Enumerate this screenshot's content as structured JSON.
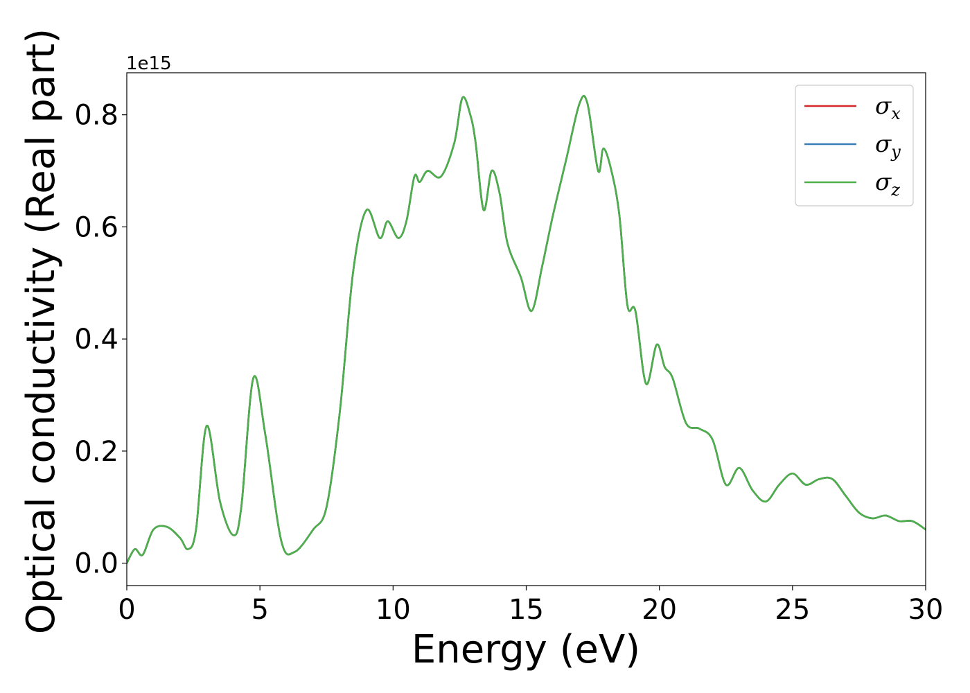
{
  "chart_data": {
    "type": "line",
    "xlabel": "Energy (eV)",
    "ylabel": "Optical conductivity (Real part)",
    "y_offset_label": "1e15",
    "xlim": [
      0,
      30
    ],
    "ylim": [
      -0.04,
      0.875
    ],
    "y_scale_factor": 1000000000000000.0,
    "x_ticks": [
      0,
      5,
      10,
      15,
      20,
      25,
      30
    ],
    "x_tick_labels": [
      "0",
      "5",
      "10",
      "15",
      "20",
      "25",
      "30"
    ],
    "y_ticks": [
      0.0,
      0.2,
      0.4,
      0.6,
      0.8
    ],
    "y_tick_labels": [
      "0.0",
      "0.2",
      "0.4",
      "0.6",
      "0.8"
    ],
    "grid": false,
    "legend_position": "top-right",
    "series": [
      {
        "name": "σ",
        "subscript": "x",
        "color": "#d62728",
        "x": [
          0,
          0.3,
          0.6,
          1.0,
          1.5,
          2.0,
          2.3,
          2.6,
          3.0,
          3.5,
          4.0,
          4.3,
          4.75,
          5.2,
          5.8,
          6.3,
          7.0,
          7.5,
          8.0,
          8.5,
          9.0,
          9.5,
          9.8,
          10.2,
          10.5,
          10.8,
          11.0,
          11.3,
          11.8,
          12.3,
          12.6,
          12.9,
          13.1,
          13.4,
          13.7,
          14.0,
          14.3,
          14.8,
          15.2,
          15.6,
          16.0,
          16.5,
          17.0,
          17.3,
          17.7,
          17.9,
          18.2,
          18.5,
          18.8,
          19.1,
          19.5,
          19.9,
          20.2,
          20.5,
          21.0,
          21.5,
          22.0,
          22.5,
          23.0,
          23.5,
          24.0,
          24.5,
          25.0,
          25.5,
          26.0,
          26.5,
          27.0,
          27.5,
          28.0,
          28.5,
          29.0,
          29.5,
          30.0
        ],
        "y": [
          0.0,
          0.025,
          0.015,
          0.06,
          0.065,
          0.045,
          0.025,
          0.06,
          0.245,
          0.11,
          0.05,
          0.1,
          0.33,
          0.23,
          0.04,
          0.02,
          0.06,
          0.1,
          0.27,
          0.52,
          0.63,
          0.58,
          0.61,
          0.58,
          0.61,
          0.69,
          0.68,
          0.7,
          0.69,
          0.75,
          0.83,
          0.8,
          0.75,
          0.63,
          0.7,
          0.66,
          0.57,
          0.51,
          0.45,
          0.53,
          0.62,
          0.72,
          0.82,
          0.82,
          0.7,
          0.74,
          0.7,
          0.62,
          0.46,
          0.45,
          0.32,
          0.39,
          0.35,
          0.33,
          0.25,
          0.24,
          0.22,
          0.14,
          0.17,
          0.13,
          0.11,
          0.14,
          0.16,
          0.14,
          0.15,
          0.15,
          0.12,
          0.09,
          0.08,
          0.085,
          0.075,
          0.075,
          0.06
        ]
      },
      {
        "name": "σ",
        "subscript": "y",
        "color": "#377eb8",
        "x": [
          0,
          0.3,
          0.6,
          1.0,
          1.5,
          2.0,
          2.3,
          2.6,
          3.0,
          3.5,
          4.0,
          4.3,
          4.75,
          5.2,
          5.8,
          6.3,
          7.0,
          7.5,
          8.0,
          8.5,
          9.0,
          9.5,
          9.8,
          10.2,
          10.5,
          10.8,
          11.0,
          11.3,
          11.8,
          12.3,
          12.6,
          12.9,
          13.1,
          13.4,
          13.7,
          14.0,
          14.3,
          14.8,
          15.2,
          15.6,
          16.0,
          16.5,
          17.0,
          17.3,
          17.7,
          17.9,
          18.2,
          18.5,
          18.8,
          19.1,
          19.5,
          19.9,
          20.2,
          20.5,
          21.0,
          21.5,
          22.0,
          22.5,
          23.0,
          23.5,
          24.0,
          24.5,
          25.0,
          25.5,
          26.0,
          26.5,
          27.0,
          27.5,
          28.0,
          28.5,
          29.0,
          29.5,
          30.0
        ],
        "y": [
          0.0,
          0.025,
          0.015,
          0.06,
          0.065,
          0.045,
          0.025,
          0.06,
          0.245,
          0.11,
          0.05,
          0.1,
          0.33,
          0.23,
          0.04,
          0.02,
          0.06,
          0.1,
          0.27,
          0.52,
          0.63,
          0.58,
          0.61,
          0.58,
          0.61,
          0.69,
          0.68,
          0.7,
          0.69,
          0.75,
          0.83,
          0.8,
          0.75,
          0.63,
          0.7,
          0.66,
          0.57,
          0.51,
          0.45,
          0.53,
          0.62,
          0.72,
          0.82,
          0.82,
          0.7,
          0.74,
          0.7,
          0.62,
          0.46,
          0.45,
          0.32,
          0.39,
          0.35,
          0.33,
          0.25,
          0.24,
          0.22,
          0.14,
          0.17,
          0.13,
          0.11,
          0.14,
          0.16,
          0.14,
          0.15,
          0.15,
          0.12,
          0.09,
          0.08,
          0.085,
          0.075,
          0.075,
          0.06
        ]
      },
      {
        "name": "σ",
        "subscript": "z",
        "color": "#4daf4a",
        "x": [
          0,
          0.3,
          0.6,
          1.0,
          1.5,
          2.0,
          2.3,
          2.6,
          3.0,
          3.5,
          4.0,
          4.3,
          4.75,
          5.2,
          5.8,
          6.3,
          7.0,
          7.5,
          8.0,
          8.5,
          9.0,
          9.5,
          9.8,
          10.2,
          10.5,
          10.8,
          11.0,
          11.3,
          11.8,
          12.3,
          12.6,
          12.9,
          13.1,
          13.4,
          13.7,
          14.0,
          14.3,
          14.8,
          15.2,
          15.6,
          16.0,
          16.5,
          17.0,
          17.3,
          17.7,
          17.9,
          18.2,
          18.5,
          18.8,
          19.1,
          19.5,
          19.9,
          20.2,
          20.5,
          21.0,
          21.5,
          22.0,
          22.5,
          23.0,
          23.5,
          24.0,
          24.5,
          25.0,
          25.5,
          26.0,
          26.5,
          27.0,
          27.5,
          28.0,
          28.5,
          29.0,
          29.5,
          30.0
        ],
        "y": [
          0.0,
          0.025,
          0.015,
          0.06,
          0.065,
          0.045,
          0.025,
          0.06,
          0.245,
          0.11,
          0.05,
          0.1,
          0.33,
          0.23,
          0.04,
          0.02,
          0.06,
          0.1,
          0.27,
          0.52,
          0.63,
          0.58,
          0.61,
          0.58,
          0.61,
          0.69,
          0.68,
          0.7,
          0.69,
          0.75,
          0.83,
          0.8,
          0.75,
          0.63,
          0.7,
          0.66,
          0.57,
          0.51,
          0.45,
          0.53,
          0.62,
          0.72,
          0.82,
          0.82,
          0.7,
          0.74,
          0.7,
          0.62,
          0.46,
          0.45,
          0.32,
          0.39,
          0.35,
          0.33,
          0.25,
          0.24,
          0.22,
          0.14,
          0.17,
          0.13,
          0.11,
          0.14,
          0.16,
          0.14,
          0.15,
          0.15,
          0.12,
          0.09,
          0.08,
          0.085,
          0.075,
          0.075,
          0.06
        ]
      }
    ]
  }
}
